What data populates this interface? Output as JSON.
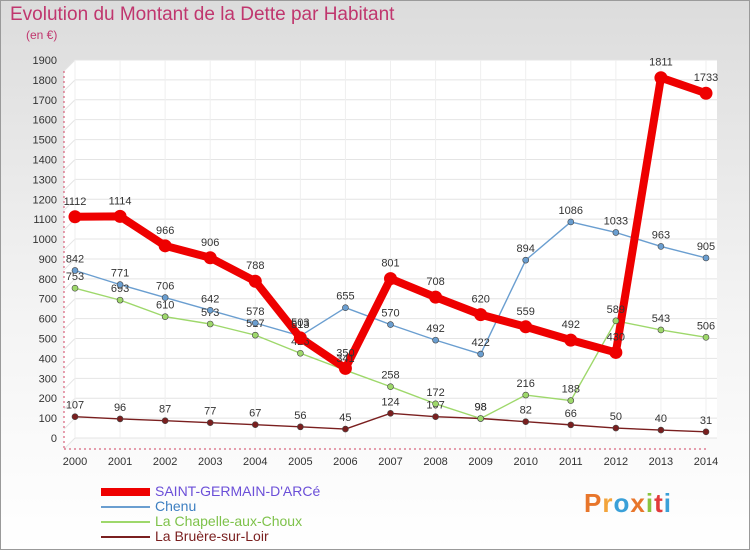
{
  "title": "Evolution du Montant de la Dette par Habitant",
  "subtitle": "(en €)",
  "logo": {
    "text": "Proxiti",
    "colors": [
      "#e8762b",
      "#f3a43b",
      "#3aa0d8",
      "#e8762b",
      "#8ac43f",
      "#e23b3b",
      "#3aa0d8"
    ]
  },
  "chart_data": {
    "type": "line",
    "title": "Evolution du Montant de la Dette par Habitant",
    "ylabel": "(en €)",
    "ylim": [
      0,
      1900
    ],
    "yticks": [
      0,
      100,
      200,
      300,
      400,
      500,
      600,
      700,
      800,
      900,
      1000,
      1100,
      1200,
      1300,
      1400,
      1500,
      1600,
      1700,
      1800,
      1900
    ],
    "x": [
      "2000",
      "2001",
      "2002",
      "2003",
      "2004",
      "2005",
      "2006",
      "2007",
      "2008",
      "2009",
      "2010",
      "2011",
      "2012",
      "2013",
      "2014"
    ],
    "grid": true,
    "legend": "bottom-left",
    "series": [
      {
        "name": "La Bruère-sur-Loir",
        "color": "#7a1f1f",
        "legend_color": "#7a1f1f",
        "values": [
          107,
          96,
          87,
          77,
          67,
          56,
          45,
          124,
          107,
          98,
          82,
          66,
          50,
          40,
          31
        ]
      },
      {
        "name": "La Chapelle-aux-Choux",
        "color": "#9ed86b",
        "legend_color": "#7ec24a",
        "values": [
          753,
          693,
          610,
          573,
          517,
          426,
          341,
          258,
          172,
          98,
          216,
          188,
          589,
          543,
          506
        ]
      },
      {
        "name": "Chenu",
        "color": "#6a9ed0",
        "legend_color": "#3d7fc1",
        "values": [
          842,
          771,
          706,
          642,
          578,
          513,
          655,
          570,
          492,
          422,
          894,
          1086,
          1033,
          963,
          905
        ]
      },
      {
        "name": "SAINT-GERMAIN-D'ARCé",
        "color": "#ee0000",
        "legend_color": "#6b4fd8",
        "values": [
          1112,
          1114,
          966,
          906,
          788,
          503,
          350,
          801,
          708,
          620,
          559,
          492,
          430,
          1811,
          1733
        ]
      }
    ]
  }
}
